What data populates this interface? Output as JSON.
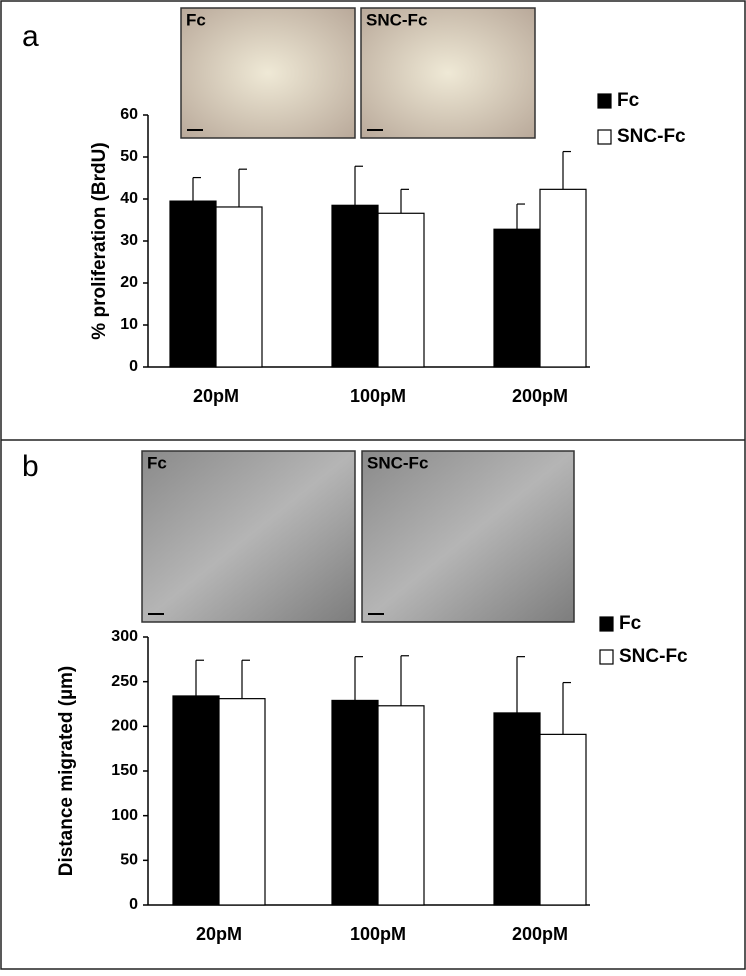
{
  "chart_data": [
    {
      "type": "bar",
      "panel_label": "a",
      "image_labels": [
        "Fc",
        "SNC-Fc"
      ],
      "y_label": "% proliferation (BrdU)",
      "categories": [
        "20pM",
        "100pM",
        "200pM"
      ],
      "series": [
        {
          "name": "Fc",
          "color": "#000000",
          "values": [
            39.5,
            38.5,
            32.8
          ],
          "errors": [
            5.6,
            9.3,
            6.0
          ]
        },
        {
          "name": "SNC-Fc",
          "color": "#ffffff",
          "values": [
            38.1,
            36.6,
            42.3
          ],
          "errors": [
            9.0,
            5.7,
            9.0
          ]
        }
      ],
      "ylim": [
        0,
        60
      ],
      "yticks": [
        0,
        10,
        20,
        30,
        40,
        50,
        60
      ],
      "grid": false
    },
    {
      "type": "bar",
      "panel_label": "b",
      "image_labels": [
        "Fc",
        "SNC-Fc"
      ],
      "y_label": "Distance migrated (µm)",
      "categories": [
        "20pM",
        "100pM",
        "200pM"
      ],
      "series": [
        {
          "name": "Fc",
          "color": "#000000",
          "values": [
            234,
            229,
            215
          ],
          "errors": [
            40,
            49,
            63
          ]
        },
        {
          "name": "SNC-Fc",
          "color": "#ffffff",
          "values": [
            231,
            223,
            191
          ],
          "errors": [
            43,
            56,
            58
          ]
        }
      ],
      "ylim": [
        0,
        300
      ],
      "yticks": [
        0,
        50,
        100,
        150,
        200,
        250,
        300
      ],
      "grid": false
    }
  ]
}
